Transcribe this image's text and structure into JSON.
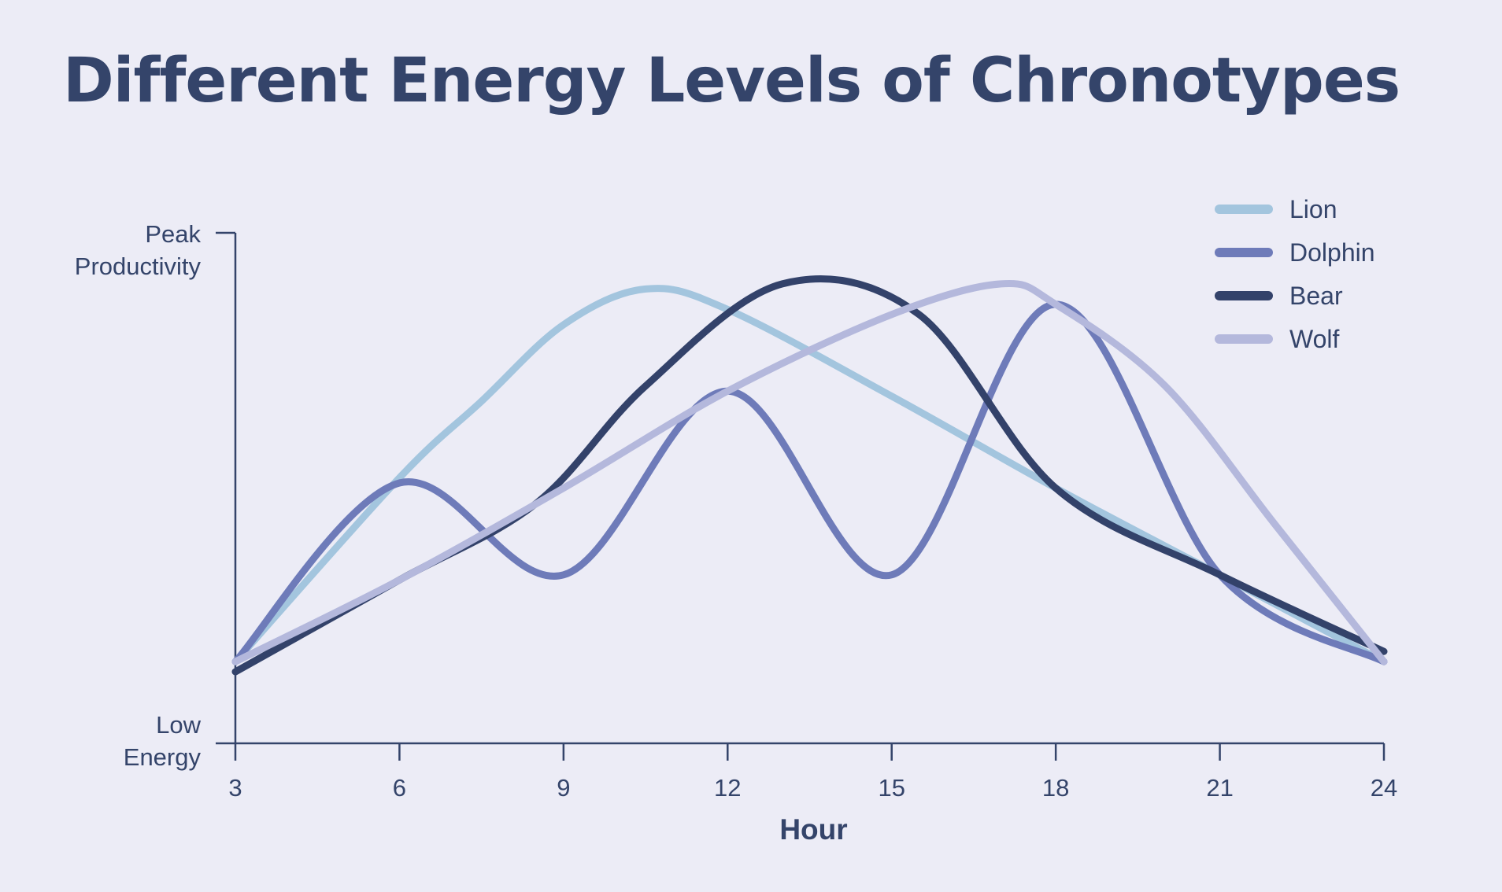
{
  "title": "Different Energy Levels of Chronotypes",
  "chart_data": {
    "type": "line",
    "title": "Different Energy Levels of Chronotypes",
    "xlabel": "Hour",
    "ylabel": "",
    "xlim": [
      3,
      24
    ],
    "ylim": [
      0,
      100
    ],
    "x_ticks": [
      "3",
      "6",
      "9",
      "12",
      "15",
      "18",
      "21",
      "24"
    ],
    "y_ticks": [
      {
        "value": 100,
        "lines": [
          "Peak",
          "Productivity"
        ]
      },
      {
        "value": 0,
        "lines": [
          "Low",
          "Energy"
        ]
      }
    ],
    "grid": false,
    "legend_position": "top-right",
    "series": [
      {
        "name": "Lion",
        "color": "#A3C5DE",
        "points": [
          [
            3,
            16
          ],
          [
            6,
            52
          ],
          [
            7.5,
            67
          ],
          [
            9,
            82
          ],
          [
            10.5,
            89
          ],
          [
            12,
            85
          ],
          [
            15,
            68
          ],
          [
            18,
            50
          ],
          [
            21,
            33
          ],
          [
            24,
            16
          ]
        ]
      },
      {
        "name": "Dolphin",
        "color": "#6E7BB9",
        "points": [
          [
            3,
            16
          ],
          [
            6,
            51
          ],
          [
            9,
            33
          ],
          [
            12,
            69
          ],
          [
            15,
            33
          ],
          [
            18,
            86
          ],
          [
            21,
            33
          ],
          [
            24,
            16
          ]
        ]
      },
      {
        "name": "Bear",
        "color": "#33426A",
        "points": [
          [
            3,
            14
          ],
          [
            6,
            32
          ],
          [
            8.5,
            47
          ],
          [
            10.5,
            70
          ],
          [
            13,
            90
          ],
          [
            15.5,
            84
          ],
          [
            18,
            50
          ],
          [
            21,
            33
          ],
          [
            24,
            18
          ]
        ]
      },
      {
        "name": "Wolf",
        "color": "#B4B8DC",
        "points": [
          [
            3,
            16
          ],
          [
            6,
            32
          ],
          [
            9,
            50
          ],
          [
            12,
            69
          ],
          [
            15,
            84
          ],
          [
            17,
            90
          ],
          [
            18,
            86
          ],
          [
            20,
            70
          ],
          [
            22,
            43
          ],
          [
            24,
            16
          ]
        ]
      }
    ]
  }
}
